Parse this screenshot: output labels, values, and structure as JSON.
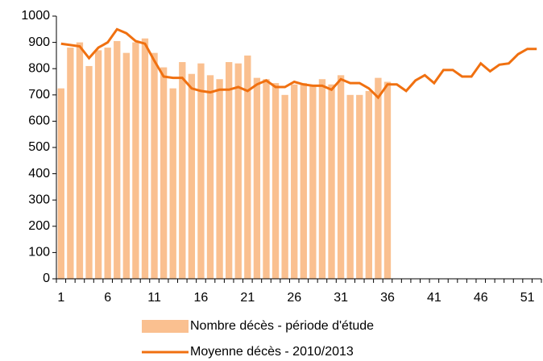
{
  "chart_data": {
    "type": "bar_line",
    "categories": [
      1,
      null,
      null,
      null,
      null,
      6,
      null,
      null,
      null,
      null,
      11,
      null,
      null,
      null,
      null,
      16,
      null,
      null,
      null,
      null,
      21,
      null,
      null,
      null,
      null,
      26,
      null,
      null,
      null,
      null,
      31,
      null,
      null,
      null,
      null,
      36,
      null,
      null,
      null,
      null,
      41,
      null,
      null,
      null,
      null,
      46,
      null,
      null,
      null,
      null,
      51,
      null
    ],
    "series": [
      {
        "name": "Nombre décès - période d'étude",
        "type": "bar",
        "color": "#fac090",
        "values": [
          725,
          880,
          900,
          810,
          870,
          880,
          905,
          860,
          900,
          915,
          860,
          805,
          725,
          825,
          780,
          820,
          775,
          760,
          825,
          820,
          850,
          765,
          760,
          745,
          700,
          740,
          745,
          735,
          760,
          740,
          775,
          700,
          700,
          715,
          765,
          750,
          null,
          null,
          null,
          null,
          null,
          null,
          null,
          null,
          null,
          null,
          null,
          null,
          null,
          null,
          null,
          null
        ]
      },
      {
        "name": "Moyenne décès - 2010/2013",
        "type": "line",
        "color": "#f07010",
        "values": [
          895,
          890,
          885,
          840,
          880,
          900,
          950,
          935,
          905,
          895,
          830,
          770,
          765,
          765,
          725,
          715,
          710,
          720,
          720,
          730,
          715,
          740,
          755,
          730,
          730,
          750,
          740,
          735,
          735,
          720,
          760,
          745,
          745,
          725,
          690,
          740,
          740,
          715,
          755,
          775,
          745,
          795,
          795,
          770,
          770,
          820,
          790,
          815,
          820,
          855,
          875,
          875
        ]
      }
    ],
    "ylim": [
      0,
      1000
    ],
    "yticks": [
      0,
      100,
      200,
      300,
      400,
      500,
      600,
      700,
      800,
      900,
      1000
    ]
  }
}
